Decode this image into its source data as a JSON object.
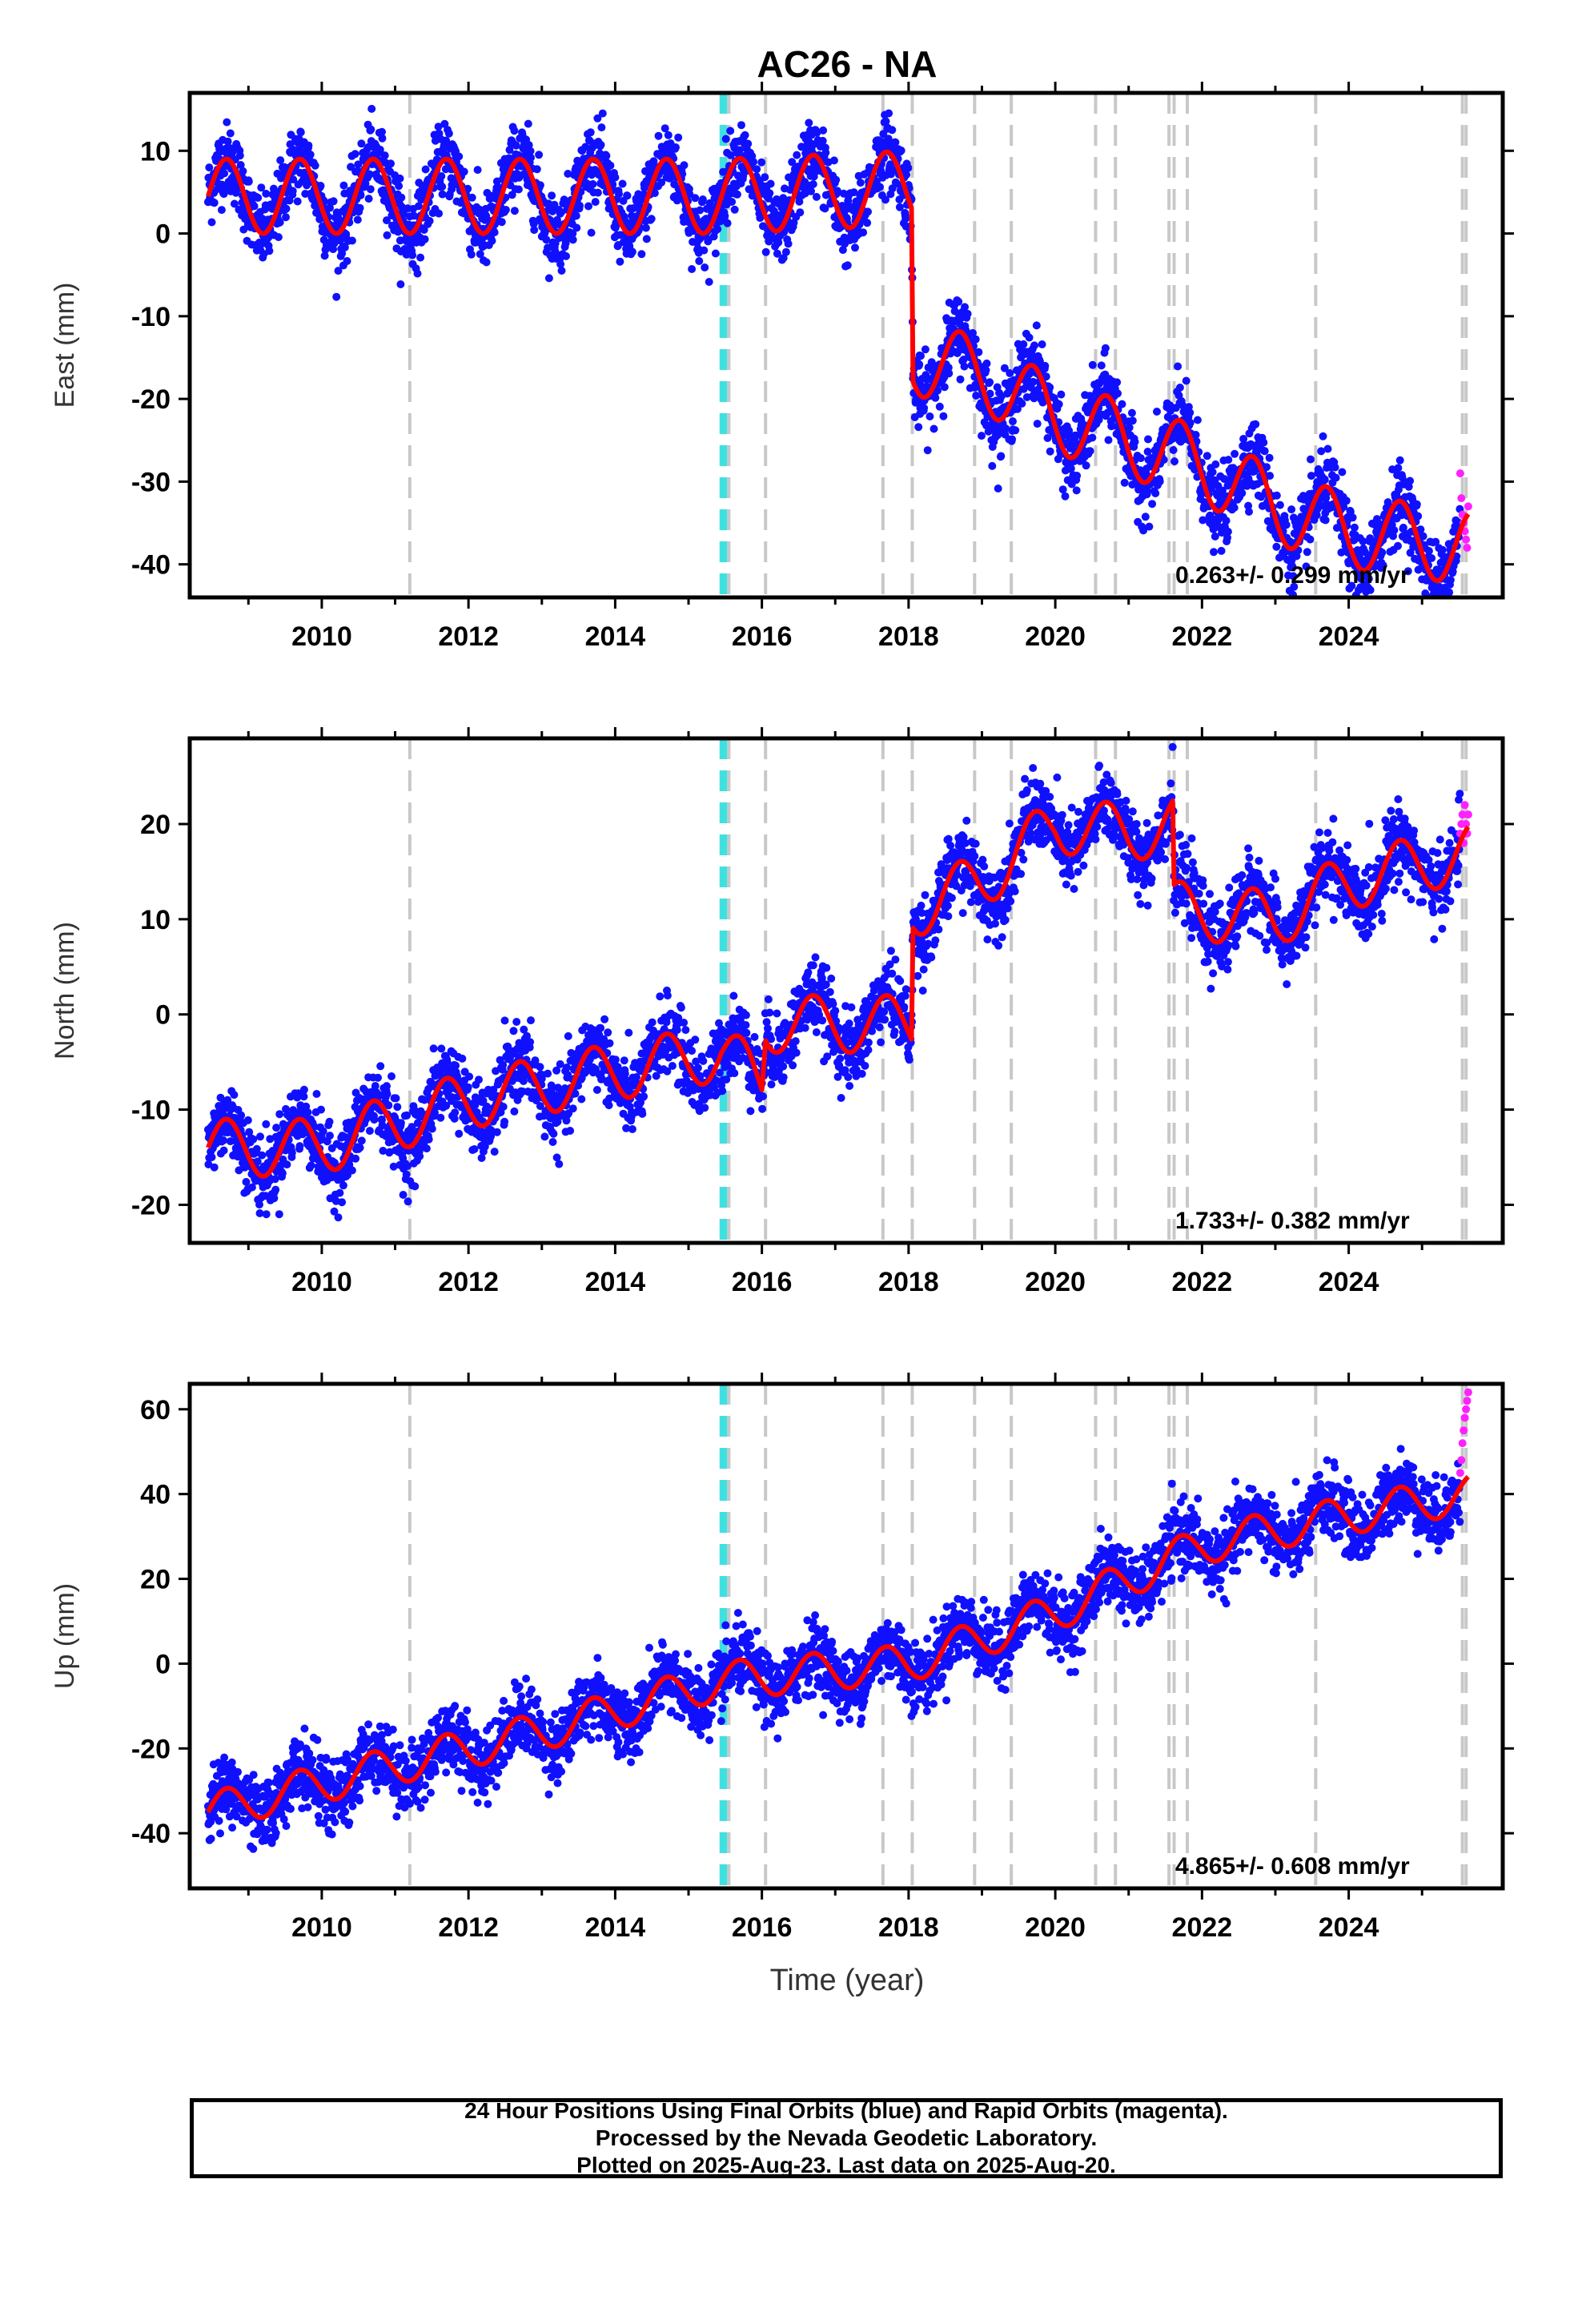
{
  "title": "AC26 - NA",
  "footer": {
    "line1": "24 Hour Positions Using Final Orbits (blue) and Rapid Orbits (magenta).",
    "line2": "Processed by the Nevada Geodetic Laboratory.",
    "line3": "Plotted on 2025-Aug-23. Last data on 2025-Aug-20."
  },
  "colors": {
    "final": "#1010ff",
    "rapid": "#ff20ff",
    "model": "#ff0000",
    "equipment_change": "#c8c8c8",
    "earthquake": "#40e0e0"
  },
  "chart_data": {
    "type": "scatter",
    "title": "AC26 - NA",
    "xlabel": "Time (year)",
    "xlim": [
      2008.2,
      2026.1
    ],
    "x_ticks": [
      "2010",
      "2012",
      "2014",
      "2016",
      "2018",
      "2020",
      "2022",
      "2024"
    ],
    "grid": false,
    "data_start": 2008.45,
    "data_end": 2025.63,
    "rapid_start": 2025.52,
    "seasonal_period_years": 1.0,
    "equipment_change_lines": [
      2011.2,
      2015.55,
      2016.05,
      2017.65,
      2018.05,
      2018.9,
      2019.4,
      2020.55,
      2020.82,
      2021.55,
      2021.62,
      2021.8,
      2023.55,
      2025.55,
      2025.6
    ],
    "earthquake_lines": [
      2015.45,
      2015.5
    ],
    "panels": [
      {
        "name": "east",
        "ylabel": "East (mm)",
        "ylim": [
          -44,
          17
        ],
        "y_ticks": [
          "10",
          "0",
          "-10",
          "-20",
          "-30",
          "-40"
        ],
        "velocity_label": "0.263+/- 0.299 mm/yr",
        "noise_mm": 2.2,
        "model_knots": [
          [
            2008.45,
            4.5
          ],
          [
            2015.45,
            4.5
          ],
          [
            2018.04,
            5.5
          ],
          [
            2018.06,
            -15
          ],
          [
            2019.0,
            -17
          ],
          [
            2020.0,
            -22
          ],
          [
            2021.0,
            -25
          ],
          [
            2022.0,
            -28
          ],
          [
            2023.0,
            -33
          ],
          [
            2024.0,
            -36
          ],
          [
            2025.63,
            -38
          ]
        ],
        "seasonal_amplitude": 4.5,
        "rapid_values": [
          -29,
          -32,
          -34,
          -35,
          -36,
          -37,
          -38,
          -33
        ]
      },
      {
        "name": "north",
        "ylabel": "North (mm)",
        "ylim": [
          -24,
          29
        ],
        "y_ticks": [
          "20",
          "10",
          "0",
          "-10",
          "-20"
        ],
        "velocity_label": "1.733+/- 0.382 mm/yr",
        "noise_mm": 1.9,
        "model_knots": [
          [
            2008.45,
            -14
          ],
          [
            2009.9,
            -14
          ],
          [
            2012.0,
            -9
          ],
          [
            2014.0,
            -6
          ],
          [
            2015.45,
            -4
          ],
          [
            2016.0,
            -7
          ],
          [
            2016.05,
            -1
          ],
          [
            2018.04,
            -1
          ],
          [
            2018.06,
            11
          ],
          [
            2019.0,
            14
          ],
          [
            2020.0,
            20
          ],
          [
            2021.0,
            19
          ],
          [
            2021.6,
            20
          ],
          [
            2021.62,
            11
          ],
          [
            2023.0,
            10
          ],
          [
            2024.0,
            14
          ],
          [
            2025.63,
            17
          ]
        ],
        "seasonal_amplitude": 3.0,
        "rapid_values": [
          19,
          20,
          21,
          18,
          22,
          20,
          19,
          21
        ]
      },
      {
        "name": "up",
        "ylabel": "Up (mm)",
        "ylim": [
          -53,
          66
        ],
        "y_ticks": [
          "60",
          "40",
          "20",
          "0",
          "-20",
          "-40"
        ],
        "velocity_label": "4.865+/- 0.608 mm/yr",
        "noise_mm": 4.0,
        "model_knots": [
          [
            2008.45,
            -35
          ],
          [
            2011.0,
            -24
          ],
          [
            2013.0,
            -16
          ],
          [
            2015.45,
            -4
          ],
          [
            2018.0,
            0
          ],
          [
            2020.0,
            12
          ],
          [
            2022.0,
            28
          ],
          [
            2024.0,
            35
          ],
          [
            2025.63,
            40
          ]
        ],
        "seasonal_amplitude": 4.5,
        "rapid_values": [
          45,
          48,
          52,
          55,
          58,
          60,
          62,
          64
        ]
      }
    ]
  }
}
